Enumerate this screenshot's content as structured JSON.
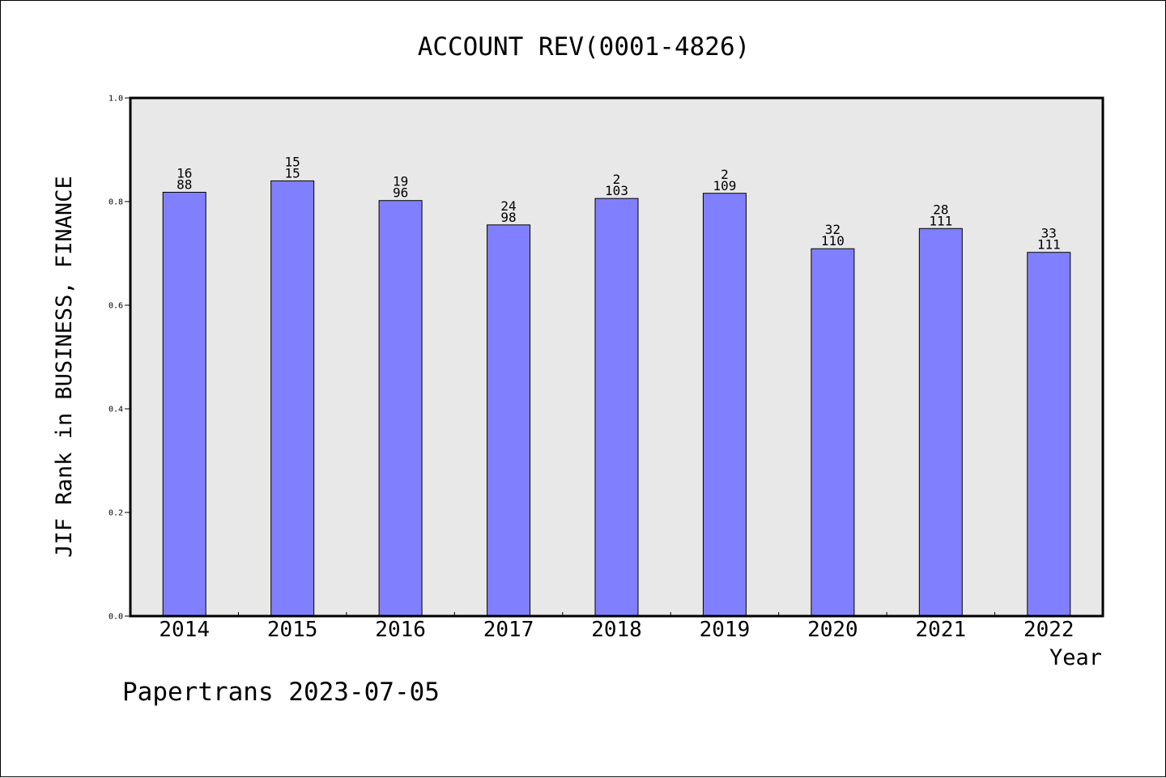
{
  "colors": {
    "background": "#ffffff",
    "plot_background": "#e8e8e8",
    "bar_fill": "#8080ff",
    "bar_stroke": "#000000",
    "axis": "#000000"
  },
  "chart_data": {
    "type": "bar",
    "title": "ACCOUNT REV(0001-4826)",
    "xlabel": "Year",
    "ylabel": "JIF Rank in BUSINESS, FINANCE",
    "categories": [
      "2014",
      "2015",
      "2016",
      "2017",
      "2018",
      "2019",
      "2020",
      "2021",
      "2022"
    ],
    "values": [
      0.818,
      0.84,
      0.802,
      0.755,
      0.806,
      0.816,
      0.709,
      0.748,
      0.702
    ],
    "rank": [
      "16",
      "15",
      "19",
      "24",
      "2",
      "2",
      "32",
      "28",
      "33"
    ],
    "total": [
      "88",
      "15",
      "96",
      "98",
      "103",
      "109",
      "110",
      "111",
      "111"
    ],
    "ylim": [
      0,
      1
    ],
    "yticks": [
      "0.0",
      "0.2",
      "0.4",
      "0.6",
      "0.8",
      "1.0"
    ],
    "grid": false,
    "legend": "none"
  },
  "footer": {
    "text": "Papertrans 2023-07-05"
  }
}
